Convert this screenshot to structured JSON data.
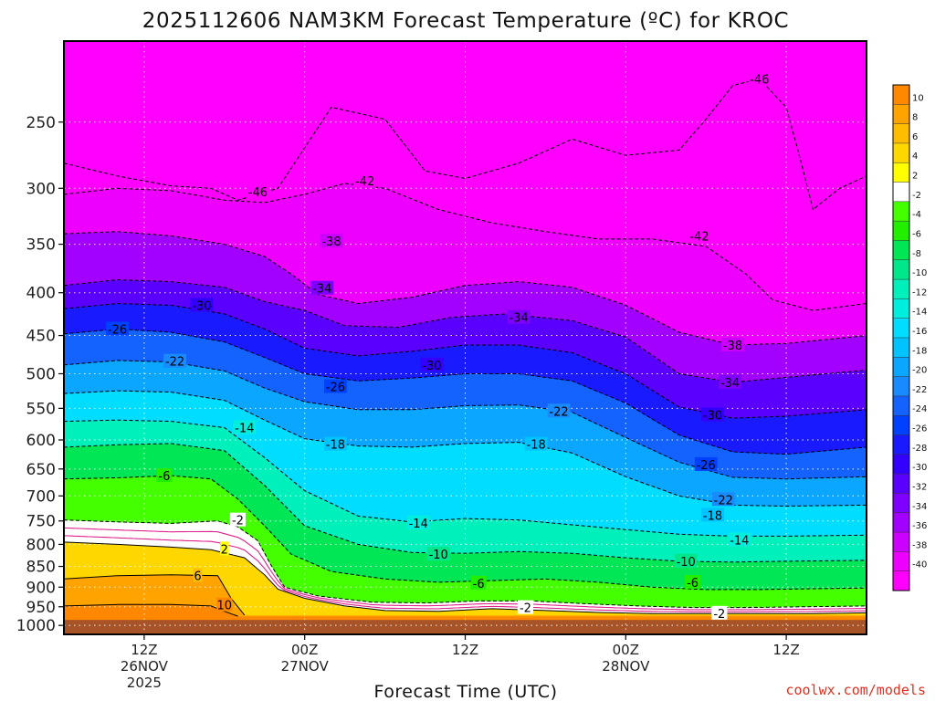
{
  "chart_data": {
    "type": "heatmap",
    "title": "2025112606 NAM3KM Forecast Temperature (ºC) for KROC",
    "xlabel": "Forecast Time (UTC)",
    "ylabel": "",
    "credit": "coolwx.com/models",
    "y_scale": "log",
    "y_inverted": true,
    "y_range": [
      200,
      1025
    ],
    "y_ticks": [
      250,
      300,
      350,
      400,
      450,
      500,
      550,
      600,
      650,
      700,
      750,
      800,
      850,
      900,
      950,
      1000
    ],
    "x_range": [
      0,
      60
    ],
    "x_unit": "forecast hours from 2025-11-26 06Z",
    "x_ticks": [
      {
        "x": 6,
        "label": "12Z",
        "sub": "26NOV",
        "sub2": "2025"
      },
      {
        "x": 18,
        "label": "00Z",
        "sub": "27NOV",
        "sub2": ""
      },
      {
        "x": 30,
        "label": "12Z",
        "sub": "",
        "sub2": ""
      },
      {
        "x": 42,
        "label": "00Z",
        "sub": "28NOV",
        "sub2": ""
      },
      {
        "x": 54,
        "label": "12Z",
        "sub": "",
        "sub2": ""
      }
    ],
    "grid": true,
    "legend": "right colorbar",
    "colorbar": {
      "levels": [
        10,
        8,
        6,
        4,
        2,
        -2,
        -4,
        -6,
        -8,
        -10,
        -12,
        -14,
        -16,
        -18,
        -20,
        -22,
        -24,
        -26,
        -28,
        -30,
        -32,
        -34,
        -36,
        -38,
        -40
      ],
      "colors": [
        "#ff8800",
        "#ffa300",
        "#ffbd00",
        "#ffd700",
        "#ffff00",
        "#ffffff",
        "#44ff00",
        "#22ef00",
        "#00e655",
        "#00e68a",
        "#00f0bb",
        "#00eedd",
        "#00ddff",
        "#00c3ff",
        "#0aa6ff",
        "#1a8aff",
        "#1463ff",
        "#0040ff",
        "#1a1aff",
        "#3300ff",
        "#5a00ff",
        "#7f00ff",
        "#a200ff",
        "#cc00ff",
        "#ee00ff",
        "#ff00ff"
      ]
    },
    "ground_pressure": 985,
    "isotherms": [
      {
        "t": 10,
        "pts": [
          [
            0,
            948
          ],
          [
            4,
            944
          ],
          [
            8,
            944
          ],
          [
            11,
            948
          ],
          [
            12,
            962
          ],
          [
            13,
            975
          ]
        ]
      },
      {
        "t": 6,
        "pts": [
          [
            0,
            880
          ],
          [
            4,
            872
          ],
          [
            8,
            870
          ],
          [
            11.5,
            872
          ],
          [
            12.5,
            928
          ],
          [
            13.5,
            972
          ]
        ]
      },
      {
        "t": 2,
        "pts": [
          [
            0,
            795
          ],
          [
            4,
            800
          ],
          [
            8,
            806
          ],
          [
            11,
            812
          ],
          [
            13.5,
            830
          ],
          [
            15,
            870
          ],
          [
            16,
            905
          ],
          [
            18,
            928
          ],
          [
            21,
            948
          ],
          [
            24,
            960
          ],
          [
            28,
            962
          ],
          [
            32,
            955
          ],
          [
            36,
            960
          ],
          [
            40,
            965
          ],
          [
            44,
            968
          ],
          [
            48,
            968
          ],
          [
            52,
            968
          ],
          [
            56,
            968
          ],
          [
            60,
            966
          ]
        ]
      },
      {
        "t": -2,
        "pts": [
          [
            0,
            748
          ],
          [
            4,
            752
          ],
          [
            8,
            755
          ],
          [
            11.5,
            750
          ],
          [
            13,
            762
          ],
          [
            14.5,
            792
          ],
          [
            15.5,
            848
          ],
          [
            16.5,
            900
          ],
          [
            19,
            922
          ],
          [
            23,
            938
          ],
          [
            27,
            940
          ],
          [
            31,
            935
          ],
          [
            35,
            935
          ],
          [
            39,
            942
          ],
          [
            43,
            948
          ],
          [
            47,
            952
          ],
          [
            51,
            952
          ],
          [
            55,
            950
          ],
          [
            60,
            948
          ]
        ]
      },
      {
        "t": -6,
        "pts": [
          [
            0,
            668
          ],
          [
            4,
            666
          ],
          [
            8,
            662
          ],
          [
            11,
            668
          ],
          [
            13,
            706
          ],
          [
            15,
            760
          ],
          [
            17,
            822
          ],
          [
            20,
            862
          ],
          [
            24,
            880
          ],
          [
            28,
            888
          ],
          [
            32,
            884
          ],
          [
            36,
            880
          ],
          [
            40,
            888
          ],
          [
            44,
            900
          ],
          [
            48,
            906
          ],
          [
            52,
            906
          ],
          [
            56,
            904
          ],
          [
            60,
            902
          ]
        ]
      },
      {
        "t": -10,
        "pts": [
          [
            0,
            612
          ],
          [
            4,
            608
          ],
          [
            8,
            606
          ],
          [
            12,
            618
          ],
          [
            15,
            680
          ],
          [
            18,
            760
          ],
          [
            22,
            800
          ],
          [
            26,
            818
          ],
          [
            30,
            820
          ],
          [
            34,
            816
          ],
          [
            38,
            820
          ],
          [
            42,
            830
          ],
          [
            46,
            838
          ],
          [
            50,
            840
          ],
          [
            54,
            838
          ],
          [
            60,
            836
          ]
        ]
      },
      {
        "t": -14,
        "pts": [
          [
            0,
            570
          ],
          [
            4,
            568
          ],
          [
            8,
            570
          ],
          [
            12,
            580
          ],
          [
            15,
            630
          ],
          [
            18,
            690
          ],
          [
            22,
            740
          ],
          [
            26,
            752
          ],
          [
            30,
            745
          ],
          [
            34,
            748
          ],
          [
            38,
            758
          ],
          [
            42,
            768
          ],
          [
            46,
            778
          ],
          [
            50,
            782
          ],
          [
            54,
            782
          ],
          [
            60,
            780
          ]
        ]
      },
      {
        "t": -18,
        "pts": [
          [
            0,
            528
          ],
          [
            4,
            524
          ],
          [
            8,
            526
          ],
          [
            12,
            538
          ],
          [
            15,
            568
          ],
          [
            18,
            598
          ],
          [
            22,
            610
          ],
          [
            26,
            612
          ],
          [
            30,
            606
          ],
          [
            34,
            604
          ],
          [
            38,
            622
          ],
          [
            42,
            664
          ],
          [
            46,
            700
          ],
          [
            50,
            718
          ],
          [
            54,
            720
          ],
          [
            60,
            718
          ]
        ]
      },
      {
        "t": -22,
        "pts": [
          [
            0,
            488
          ],
          [
            4,
            482
          ],
          [
            8,
            484
          ],
          [
            12,
            496
          ],
          [
            15,
            520
          ],
          [
            18,
            540
          ],
          [
            22,
            552
          ],
          [
            26,
            552
          ],
          [
            30,
            546
          ],
          [
            34,
            545
          ],
          [
            38,
            556
          ],
          [
            42,
            596
          ],
          [
            46,
            638
          ],
          [
            50,
            665
          ],
          [
            54,
            668
          ],
          [
            60,
            664
          ]
        ]
      },
      {
        "t": -26,
        "pts": [
          [
            0,
            448
          ],
          [
            4,
            442
          ],
          [
            8,
            446
          ],
          [
            12,
            458
          ],
          [
            15,
            478
          ],
          [
            18,
            500
          ],
          [
            22,
            510
          ],
          [
            26,
            506
          ],
          [
            30,
            500
          ],
          [
            34,
            500
          ],
          [
            38,
            510
          ],
          [
            42,
            542
          ],
          [
            46,
            592
          ],
          [
            50,
            620
          ],
          [
            54,
            624
          ],
          [
            60,
            612
          ]
        ]
      },
      {
        "t": -30,
        "pts": [
          [
            0,
            418
          ],
          [
            4,
            412
          ],
          [
            8,
            414
          ],
          [
            12,
            424
          ],
          [
            15,
            442
          ],
          [
            18,
            466
          ],
          [
            22,
            476
          ],
          [
            26,
            470
          ],
          [
            30,
            462
          ],
          [
            34,
            462
          ],
          [
            38,
            472
          ],
          [
            42,
            500
          ],
          [
            46,
            548
          ],
          [
            50,
            565
          ],
          [
            54,
            562
          ],
          [
            60,
            552
          ]
        ]
      },
      {
        "t": -34,
        "pts": [
          [
            0,
            392
          ],
          [
            4,
            386
          ],
          [
            8,
            388
          ],
          [
            12,
            394
          ],
          [
            15,
            410
          ],
          [
            18,
            420
          ],
          [
            21,
            438
          ],
          [
            25,
            440
          ],
          [
            29,
            428
          ],
          [
            33,
            424
          ],
          [
            38,
            432
          ],
          [
            42,
            452
          ],
          [
            46,
            500
          ],
          [
            50,
            512
          ],
          [
            54,
            505
          ],
          [
            60,
            495
          ]
        ]
      },
      {
        "t": -38,
        "pts": [
          [
            0,
            340
          ],
          [
            4,
            338
          ],
          [
            8,
            342
          ],
          [
            12,
            350
          ],
          [
            15,
            362
          ],
          [
            17,
            380
          ],
          [
            19,
            402
          ],
          [
            22,
            412
          ],
          [
            26,
            405
          ],
          [
            30,
            392
          ],
          [
            34,
            388
          ],
          [
            38,
            394
          ],
          [
            42,
            414
          ],
          [
            46,
            446
          ],
          [
            50,
            462
          ],
          [
            54,
            460
          ],
          [
            60,
            450
          ]
        ]
      },
      {
        "t": -42,
        "pts": [
          [
            0,
            305
          ],
          [
            4,
            300
          ],
          [
            8,
            302
          ],
          [
            12,
            310
          ],
          [
            15,
            312
          ],
          [
            18,
            305
          ],
          [
            21,
            296
          ],
          [
            24,
            300
          ],
          [
            28,
            318
          ],
          [
            32,
            330
          ],
          [
            36,
            338
          ],
          [
            40,
            345
          ],
          [
            44,
            345
          ],
          [
            48,
            352
          ],
          [
            51,
            380
          ],
          [
            53,
            408
          ],
          [
            56,
            420
          ],
          [
            60,
            412
          ]
        ]
      },
      {
        "t": -46,
        "pts": [
          [
            0,
            280
          ],
          [
            4,
            290
          ],
          [
            8,
            298
          ],
          [
            11,
            300
          ],
          [
            13,
            310
          ],
          [
            16,
            300
          ],
          [
            20,
            240
          ],
          [
            24,
            248
          ],
          [
            27,
            286
          ],
          [
            30,
            292
          ],
          [
            34,
            280
          ],
          [
            38,
            262
          ],
          [
            42,
            274
          ],
          [
            46,
            270
          ],
          [
            48,
            248
          ],
          [
            50,
            226
          ],
          [
            52,
            222
          ],
          [
            54,
            240
          ],
          [
            55,
            275
          ],
          [
            56,
            318
          ],
          [
            58,
            300
          ],
          [
            60,
            290
          ]
        ]
      }
    ],
    "contour_labels": [
      {
        "t": -46,
        "x": 52,
        "p": 222
      },
      {
        "t": -46,
        "x": 14.5,
        "p": 303
      },
      {
        "t": -42,
        "x": 22.5,
        "p": 294
      },
      {
        "t": -42,
        "x": 47.5,
        "p": 342
      },
      {
        "t": -38,
        "x": 20,
        "p": 347
      },
      {
        "t": -38,
        "x": 50,
        "p": 462
      },
      {
        "t": -34,
        "x": 19.3,
        "p": 395
      },
      {
        "t": -34,
        "x": 34,
        "p": 428
      },
      {
        "t": -34,
        "x": 49.8,
        "p": 512
      },
      {
        "t": -30,
        "x": 10.3,
        "p": 414
      },
      {
        "t": -30,
        "x": 27.5,
        "p": 488
      },
      {
        "t": -30,
        "x": 48.5,
        "p": 560
      },
      {
        "t": -26,
        "x": 4,
        "p": 442
      },
      {
        "t": -26,
        "x": 20.3,
        "p": 518
      },
      {
        "t": -26,
        "x": 48,
        "p": 642
      },
      {
        "t": -22,
        "x": 8.3,
        "p": 483
      },
      {
        "t": -22,
        "x": 37,
        "p": 554
      },
      {
        "t": -22,
        "x": 49.3,
        "p": 707
      },
      {
        "t": -18,
        "x": 20.3,
        "p": 607
      },
      {
        "t": -18,
        "x": 35.3,
        "p": 607
      },
      {
        "t": -18,
        "x": 48.5,
        "p": 738
      },
      {
        "t": -14,
        "x": 13.5,
        "p": 580
      },
      {
        "t": -14,
        "x": 26.5,
        "p": 754
      },
      {
        "t": -14,
        "x": 50.5,
        "p": 790
      },
      {
        "t": -10,
        "x": 28,
        "p": 822
      },
      {
        "t": -10,
        "x": 46.5,
        "p": 838
      },
      {
        "t": -6,
        "x": 7.5,
        "p": 662
      },
      {
        "t": -6,
        "x": 31,
        "p": 890
      },
      {
        "t": -6,
        "x": 47,
        "p": 888
      },
      {
        "t": -2,
        "x": 13,
        "p": 748
      },
      {
        "t": -2,
        "x": 34.5,
        "p": 952
      },
      {
        "t": -2,
        "x": 49,
        "p": 967
      },
      {
        "t": 2,
        "x": 12,
        "p": 810
      },
      {
        "t": 6,
        "x": 10,
        "p": 872
      },
      {
        "t": 10,
        "x": 12,
        "p": 945
      }
    ]
  }
}
